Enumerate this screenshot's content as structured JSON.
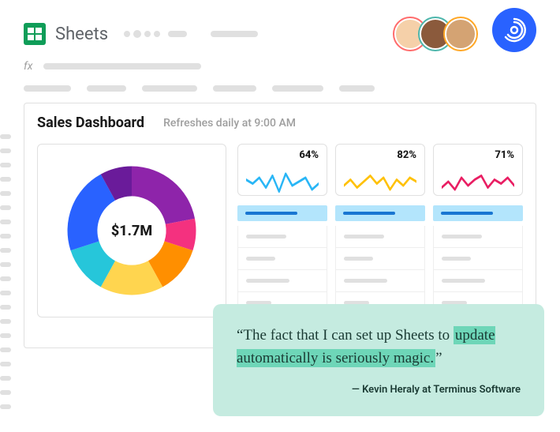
{
  "header": {
    "app_name": "Sheets",
    "avatars": [
      {
        "bg": "#f5d0a9",
        "ring": "#ff6b6b"
      },
      {
        "bg": "#8b5a3c",
        "ring": "#4db6ac"
      },
      {
        "bg": "#d4a373",
        "ring": "#ffa726"
      }
    ],
    "badge_color": "#2962ff"
  },
  "fx": {
    "label": "fx"
  },
  "dashboard": {
    "title": "Sales Dashboard",
    "subtitle": "Refreshes daily at 9:00 AM"
  },
  "donut": {
    "center_label": "$1.7M",
    "inner_radius": 46,
    "outer_radius": 86,
    "slices": [
      {
        "color": "#8e24aa",
        "pct": 22
      },
      {
        "color": "#f4317f",
        "pct": 8
      },
      {
        "color": "#ff8f00",
        "pct": 12
      },
      {
        "color": "#ffd54f",
        "pct": 16
      },
      {
        "color": "#26c6da",
        "pct": 12
      },
      {
        "color": "#2962ff",
        "pct": 22
      },
      {
        "color": "#6a1b9a",
        "pct": 8
      }
    ]
  },
  "sparklines": [
    {
      "value": "64%",
      "color": "#29b6f6",
      "points": [
        18,
        22,
        16,
        26,
        14,
        30,
        12,
        24,
        20,
        16,
        28,
        22
      ]
    },
    {
      "value": "82%",
      "color": "#ffc107",
      "points": [
        24,
        18,
        26,
        20,
        14,
        22,
        16,
        28,
        18,
        24,
        16,
        20
      ]
    },
    {
      "value": "71%",
      "color": "#e91e63",
      "points": [
        26,
        20,
        28,
        16,
        24,
        18,
        14,
        26,
        18,
        22,
        16,
        24
      ]
    }
  ],
  "tables": {
    "columns": 3,
    "rows_per_column": 5,
    "row_widths": [
      55,
      40,
      60,
      35,
      50
    ]
  },
  "quote": {
    "text_prefix": "“The fact that I can set up Sheets to ",
    "text_highlight": "update automatically is seriously magic.",
    "text_suffix": "”",
    "attribution": "— Kevin Heraly at  Terminus Software",
    "bg_color": "#c5ebe0",
    "highlight_color": "#6ed6b8"
  },
  "colors": {
    "skeleton": "#e0e0e0",
    "border": "#e0e0e0",
    "table_header_bg": "#b3e5fc",
    "table_header_line": "#1976d2"
  }
}
